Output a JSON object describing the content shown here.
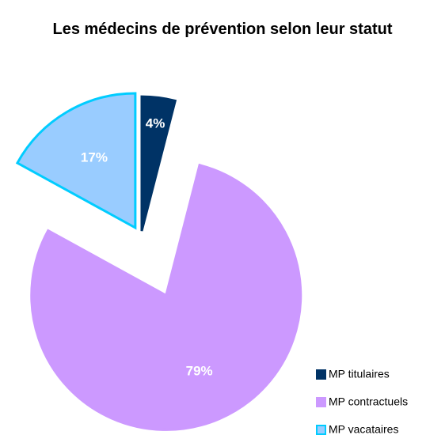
{
  "chart_data": {
    "type": "pie",
    "title": "Les médecins de prévention selon leur statut",
    "categories": [
      "MP titulaires",
      "MP contractuels",
      "MP vacataires"
    ],
    "values": [
      4,
      79,
      17
    ],
    "value_labels": [
      "4%",
      "79%",
      "17%"
    ],
    "colors": [
      "#003366",
      "#cc99ff",
      "#99ccff"
    ],
    "edgecolors": [
      "#003366",
      "#cc99ff",
      "#00ccff"
    ],
    "legend": "lower right"
  }
}
